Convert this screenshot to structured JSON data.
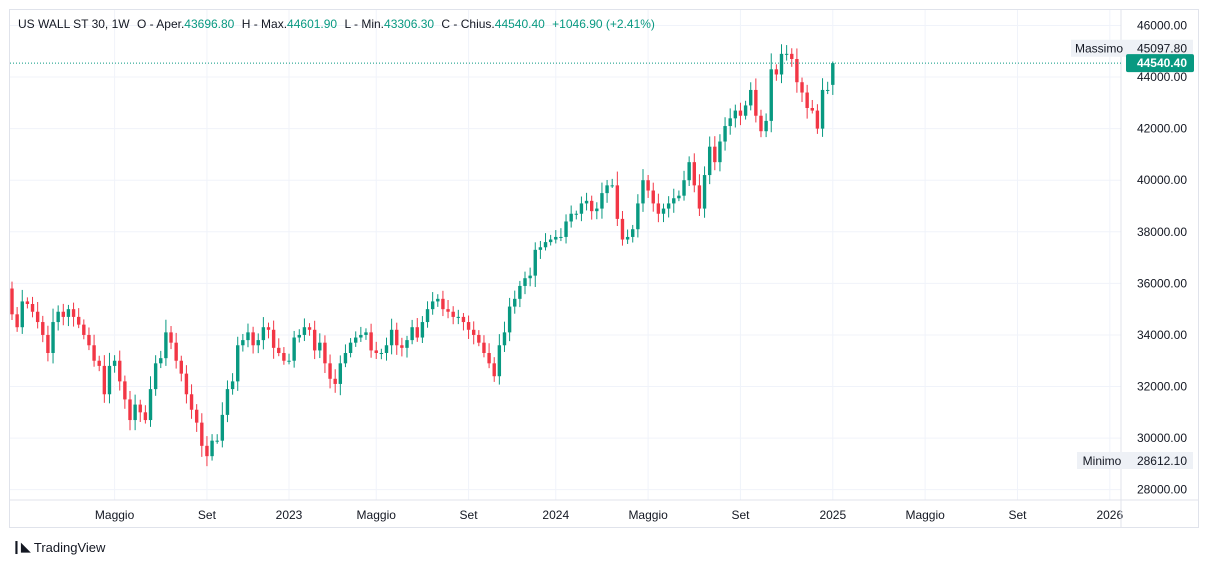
{
  "legend": {
    "symbol": "US WALL ST 30, 1W",
    "open_label": "O - Aper.",
    "open": "43696.80",
    "high_label": "H - Max.",
    "high": "44601.90",
    "low_label": "L - Min.",
    "low": "43306.30",
    "close_label": "C - Chius.",
    "close": "44540.40",
    "change": "+1046.90 (+2.41%)"
  },
  "markers": {
    "high_label": "Massimo",
    "high_value": "45097.80",
    "low_label": "Minimo",
    "low_value": "28612.10",
    "last_value": "44540.40"
  },
  "brand": "TradingView",
  "colors": {
    "up": "#089981",
    "down": "#f23645",
    "grid": "#f0f3fa",
    "last": "#089981"
  },
  "chart_data": {
    "type": "candlestick",
    "timeframe": "1W",
    "y_ticks": [
      "46000.00",
      "44000.00",
      "42000.00",
      "40000.00",
      "38000.00",
      "36000.00",
      "34000.00",
      "32000.00",
      "30000.00",
      "28000.00"
    ],
    "ylim": [
      27600,
      46600
    ],
    "x_labels": [
      "Maggio",
      "Set",
      "2023",
      "Maggio",
      "Set",
      "2024",
      "Maggio",
      "Set",
      "2025",
      "Maggio",
      "Set",
      "2026"
    ],
    "x_label_weeks": [
      20,
      38,
      54,
      71,
      89,
      106,
      124,
      142,
      160,
      178,
      196,
      214
    ],
    "grid": true,
    "last_price": 44540.4,
    "max_price": 45097.8,
    "min_price": 28612.1,
    "series_close": [
      34800,
      34300,
      35300,
      35200,
      34900,
      34500,
      34000,
      33300,
      34500,
      34900,
      34700,
      35000,
      34700,
      34400,
      34000,
      33600,
      33000,
      32800,
      31700,
      32800,
      33000,
      32200,
      31500,
      30700,
      31300,
      31000,
      30700,
      31900,
      32900,
      33100,
      34100,
      33700,
      33000,
      32500,
      31700,
      31100,
      30600,
      29700,
      29300,
      29900,
      29900,
      30900,
      31900,
      32200,
      33600,
      33800,
      34100,
      33600,
      33800,
      34300,
      34200,
      33500,
      33300,
      33000,
      33000,
      33900,
      34000,
      34300,
      34200,
      33400,
      33700,
      32900,
      32300,
      32100,
      32900,
      33300,
      33700,
      33900,
      34000,
      34100,
      33400,
      33300,
      33300,
      33600,
      34200,
      33600,
      33500,
      33800,
      34300,
      33900,
      34500,
      35000,
      35300,
      35400,
      35000,
      34900,
      34700,
      34700,
      34500,
      34200,
      34000,
      33700,
      33300,
      32900,
      32400,
      33600,
      34100,
      35100,
      35400,
      35900,
      36200,
      36300,
      37300,
      37400,
      37600,
      37700,
      37800,
      37800,
      38400,
      38700,
      38700,
      39100,
      39200,
      38800,
      38900,
      39500,
      39800,
      39800,
      38500,
      37700,
      37800,
      38100,
      39100,
      40000,
      39600,
      39100,
      38700,
      38900,
      39100,
      39300,
      39400,
      40000,
      40700,
      39800,
      38900,
      40200,
      41300,
      40700,
      41500,
      42100,
      42400,
      42700,
      42500,
      42900,
      43500,
      42500,
      41900,
      42300,
      44300,
      44100,
      44900,
      44900,
      44700,
      43800,
      43400,
      42800,
      42700,
      42000,
      43500,
      43500,
      44540
    ]
  }
}
